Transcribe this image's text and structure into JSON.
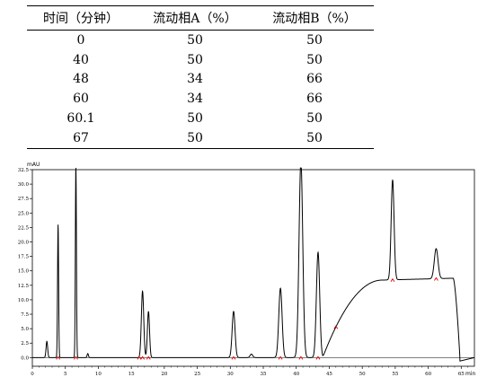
{
  "table": {
    "headers": [
      "时间（分钟）",
      "流动相A（%）",
      "流动相B（%）"
    ],
    "rows": [
      [
        "0",
        "50",
        "50"
      ],
      [
        "40",
        "50",
        "50"
      ],
      [
        "48",
        "34",
        "66"
      ],
      [
        "60",
        "34",
        "66"
      ],
      [
        "60.1",
        "50",
        "50"
      ],
      [
        "67",
        "50",
        "50"
      ]
    ]
  },
  "chart_data": {
    "type": "line",
    "ylabel": "mAU",
    "xlabel": "min",
    "xlim": [
      0,
      67
    ],
    "ylim": [
      -1.5,
      32.5
    ],
    "xticks": [
      "0",
      "5",
      "10",
      "15",
      "20",
      "25",
      "30",
      "35",
      "40",
      "45",
      "50",
      "55",
      "60",
      "65"
    ],
    "yticks": [
      "0.0",
      "2.5",
      "5.0",
      "7.5",
      "10.0",
      "12.5",
      "15.0",
      "17.5",
      "20.0",
      "22.5",
      "25.0",
      "27.5",
      "30.0",
      "32.5"
    ],
    "grid": false,
    "peaks": [
      {
        "t": 2.2,
        "h": 2.8,
        "w": 0.12
      },
      {
        "t": 3.9,
        "h": 23.0,
        "w": 0.08
      },
      {
        "t": 6.6,
        "h": 33.5,
        "w": 0.08
      },
      {
        "t": 8.4,
        "h": 0.7,
        "w": 0.1
      },
      {
        "t": 16.7,
        "h": 11.5,
        "w": 0.18
      },
      {
        "t": 17.6,
        "h": 8.0,
        "w": 0.16
      },
      {
        "t": 30.5,
        "h": 8.0,
        "w": 0.22
      },
      {
        "t": 33.2,
        "h": 0.6,
        "w": 0.2
      },
      {
        "t": 37.6,
        "h": 12.0,
        "w": 0.25
      },
      {
        "t": 40.7,
        "h": 34.0,
        "w": 0.28
      },
      {
        "t": 43.3,
        "h": 18.2,
        "w": 0.25
      },
      {
        "t": 54.6,
        "h": 17.3,
        "w": 0.22
      },
      {
        "t": 61.2,
        "h": 5.2,
        "w": 0.28
      }
    ],
    "markers": [
      3.9,
      6.6,
      16.2,
      16.7,
      17.6,
      30.5,
      37.6,
      40.7,
      43.3,
      46.0,
      54.6,
      61.2
    ]
  }
}
